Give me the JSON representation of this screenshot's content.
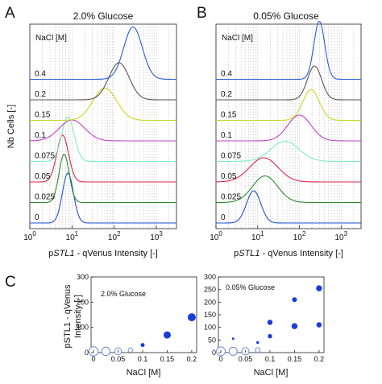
{
  "figure": {
    "panel_a": {
      "letter": "A",
      "title": "2.0% Glucose",
      "legend_header": "NaCl [M]",
      "ylabel": "Nb Cells [-]",
      "xlabel_prefix": "p",
      "xlabel_gene": "STL1",
      "xlabel_suffix": " - qVenus Intensity [-]"
    },
    "panel_b": {
      "letter": "B",
      "title": "0.05% Glucose",
      "legend_header": "NaCl [M]",
      "xlabel_prefix": "p",
      "xlabel_gene": "STL1",
      "xlabel_suffix": " - qVenus Intensity [-]"
    },
    "panel_c": {
      "letter": "C",
      "ylabel_lines": [
        "pSTL1 - qVenus",
        "Intensity [-]"
      ],
      "left_title": "2.0% Glucose",
      "right_title": "0.05% Glucose",
      "xlabel": "NaCl [M]"
    }
  },
  "chart_data": [
    {
      "id": "A",
      "type": "line",
      "title": "2.0% Glucose",
      "xlabel": "pSTL1 - qVenus Intensity [-]",
      "ylabel": "Nb Cells [-]",
      "xscale": "log",
      "xlim": [
        1,
        3000
      ],
      "xticks": [
        {
          "value": 1,
          "base": "10",
          "exp": "0"
        },
        {
          "value": 10,
          "base": "10",
          "exp": "1"
        },
        {
          "value": 100,
          "base": "10",
          "exp": "2"
        },
        {
          "value": 1000,
          "base": "10",
          "exp": "3"
        }
      ],
      "grid": "vertical dotted",
      "series": [
        {
          "name": "0",
          "color": "#1f4fd6",
          "baseline_index": 0,
          "peak": 8,
          "width": 0.13,
          "height": 62
        },
        {
          "name": "0.025",
          "color": "#2a8a2a",
          "baseline_index": 1,
          "peak": 6.5,
          "width": 0.12,
          "height": 60
        },
        {
          "name": "0.05",
          "color": "#e0244a",
          "baseline_index": 2,
          "peak": 6,
          "width": 0.14,
          "height": 58
        },
        {
          "name": "0.075",
          "color": "#7cf0c0",
          "baseline_index": 3,
          "peak": 8,
          "width": 0.15,
          "height": 55
        },
        {
          "name": "0.1",
          "color": "#c040c8",
          "baseline_index": 4,
          "peak": 10,
          "width": 0.3,
          "height": 26
        },
        {
          "name": "0.15",
          "color": "#c8d820",
          "baseline_index": 5,
          "peak": 60,
          "width": 0.28,
          "height": 40
        },
        {
          "name": "0.2",
          "color": "#555555",
          "baseline_index": 6,
          "peak": 130,
          "width": 0.24,
          "height": 46
        },
        {
          "name": "0.4",
          "color": "#2a5ad8",
          "baseline_index": 7,
          "peak": 280,
          "width": 0.22,
          "height": 65
        }
      ]
    },
    {
      "id": "B",
      "type": "line",
      "title": "0.05% Glucose",
      "xlabel": "pSTL1 - qVenus Intensity [-]",
      "xscale": "log",
      "xlim": [
        1,
        3000
      ],
      "xticks": [
        {
          "value": 1,
          "base": "10",
          "exp": "0"
        },
        {
          "value": 10,
          "base": "10",
          "exp": "1"
        },
        {
          "value": 100,
          "base": "10",
          "exp": "2"
        },
        {
          "value": 1000,
          "base": "10",
          "exp": "3"
        }
      ],
      "grid": "vertical dotted",
      "series": [
        {
          "name": "0",
          "color": "#1f4fd6",
          "baseline_index": 0,
          "peak": 8,
          "width": 0.17,
          "height": 40
        },
        {
          "name": "0.025",
          "color": "#2a8a2a",
          "baseline_index": 1,
          "peak": 15,
          "width": 0.3,
          "height": 33
        },
        {
          "name": "0.05",
          "color": "#e0244a",
          "baseline_index": 2,
          "peak": 14,
          "width": 0.34,
          "height": 30
        },
        {
          "name": "0.075",
          "color": "#7cf0c0",
          "baseline_index": 3,
          "peak": 45,
          "width": 0.34,
          "height": 25
        },
        {
          "name": "0.1",
          "color": "#c040c8",
          "baseline_index": 4,
          "peak": 100,
          "width": 0.28,
          "height": 32
        },
        {
          "name": "0.15",
          "color": "#c8d820",
          "baseline_index": 5,
          "peak": 190,
          "width": 0.2,
          "height": 38
        },
        {
          "name": "0.2",
          "color": "#555555",
          "baseline_index": 6,
          "peak": 230,
          "width": 0.17,
          "height": 42
        },
        {
          "name": "0.4",
          "color": "#2a5ad8",
          "baseline_index": 7,
          "peak": 300,
          "width": 0.13,
          "height": 72
        }
      ]
    },
    {
      "id": "C-left",
      "type": "scatter",
      "title": "2.0% Glucose",
      "xlabel": "NaCl [M]",
      "ylabel": "pSTL1 - qVenus Intensity [-]",
      "xlim": [
        -0.005,
        0.21
      ],
      "ylim": [
        0,
        300
      ],
      "xticks": [
        "0",
        "0.05",
        "0.1",
        "0.15",
        "0.2"
      ],
      "yticks": [
        "0",
        "100",
        "200",
        "300"
      ],
      "points": [
        {
          "x": 0,
          "y": 5,
          "weight": 0.95,
          "filled": false
        },
        {
          "x": 0.025,
          "y": 5,
          "weight": 0.85,
          "filled": false
        },
        {
          "x": 0.05,
          "y": 5,
          "weight": 0.65,
          "filled": false
        },
        {
          "x": 0.075,
          "y": 10,
          "weight": 0.35,
          "filled": false
        },
        {
          "x": 0.1,
          "y": 30,
          "weight": 0.3,
          "filled": true
        },
        {
          "x": 0.15,
          "y": 70,
          "weight": 0.7,
          "filled": true
        },
        {
          "x": 0.2,
          "y": 140,
          "weight": 0.8,
          "filled": true
        }
      ]
    },
    {
      "id": "C-right",
      "type": "scatter",
      "title": "0.05% Glucose",
      "xlabel": "NaCl [M]",
      "xlim": [
        -0.005,
        0.21
      ],
      "ylim": [
        0,
        300
      ],
      "xticks": [
        "0",
        "0.05",
        "0.1",
        "0.15",
        "0.2"
      ],
      "yticks": [
        "0",
        "50",
        "100",
        "150",
        "200",
        "250",
        "300"
      ],
      "points": [
        {
          "x": 0,
          "y": 5,
          "weight": 0.9,
          "filled": false
        },
        {
          "x": 0.025,
          "y": 5,
          "weight": 0.8,
          "filled": false
        },
        {
          "x": 0.025,
          "y": 55,
          "weight": 0.1,
          "filled": true
        },
        {
          "x": 0.05,
          "y": 5,
          "weight": 0.7,
          "filled": false
        },
        {
          "x": 0.075,
          "y": 10,
          "weight": 0.4,
          "filled": false
        },
        {
          "x": 0.075,
          "y": 40,
          "weight": 0.15,
          "filled": true
        },
        {
          "x": 0.1,
          "y": 65,
          "weight": 0.35,
          "filled": true
        },
        {
          "x": 0.1,
          "y": 120,
          "weight": 0.45,
          "filled": true
        },
        {
          "x": 0.15,
          "y": 105,
          "weight": 0.55,
          "filled": true
        },
        {
          "x": 0.15,
          "y": 210,
          "weight": 0.4,
          "filled": true
        },
        {
          "x": 0.2,
          "y": 110,
          "weight": 0.45,
          "filled": true
        },
        {
          "x": 0.2,
          "y": 255,
          "weight": 0.55,
          "filled": true
        }
      ]
    }
  ]
}
